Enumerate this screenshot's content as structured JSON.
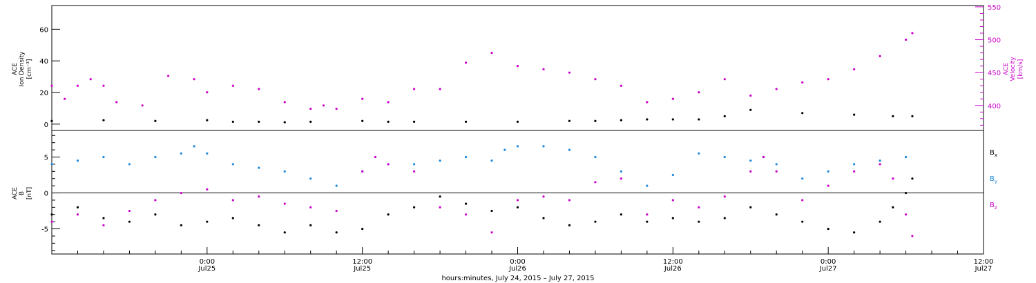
{
  "chart_data": [
    {
      "type": "scatter",
      "panel": "top",
      "ylabel_left": [
        "ACE",
        "Ion Density",
        "[cm⁻³]"
      ],
      "ylabel_right": [
        "ACE",
        "Velocity",
        "[km/s]"
      ],
      "left_axis": {
        "ylim": [
          -4,
          75
        ],
        "ticks": [
          0,
          20,
          40,
          60
        ]
      },
      "right_axis": {
        "ylim": [
          362,
          552
        ],
        "ticks": [
          400,
          450,
          500,
          550
        ],
        "color": "#cc00cc"
      },
      "xlim_hours": [
        0,
        72
      ],
      "series": [
        {
          "axis": "left",
          "color": "#000000",
          "points": [
            [
              0,
              2
            ],
            [
              4,
              2.5
            ],
            [
              8,
              2
            ],
            [
              12,
              2.5
            ],
            [
              14,
              1.5
            ],
            [
              16,
              1.5
            ],
            [
              18,
              1.2
            ],
            [
              20,
              1.5
            ],
            [
              24,
              2
            ],
            [
              26,
              1.5
            ],
            [
              28,
              1.5
            ],
            [
              32,
              1.5
            ],
            [
              36,
              1.5
            ],
            [
              40,
              2
            ],
            [
              42,
              2
            ],
            [
              44,
              2.5
            ],
            [
              46,
              3
            ],
            [
              48,
              3
            ],
            [
              50,
              3
            ],
            [
              52,
              5
            ],
            [
              54,
              9
            ],
            [
              58,
              7
            ],
            [
              62,
              6
            ],
            [
              65,
              5
            ],
            [
              66.5,
              5
            ]
          ]
        },
        {
          "axis": "right",
          "color": "#cc00cc",
          "points": [
            [
              0,
              430
            ],
            [
              1,
              410
            ],
            [
              2,
              430
            ],
            [
              3,
              440
            ],
            [
              4,
              430
            ],
            [
              5,
              405
            ],
            [
              7,
              400
            ],
            [
              9,
              445
            ],
            [
              11,
              440
            ],
            [
              12,
              420
            ],
            [
              14,
              430
            ],
            [
              16,
              425
            ],
            [
              18,
              405
            ],
            [
              20,
              395
            ],
            [
              21,
              400
            ],
            [
              22,
              395
            ],
            [
              24,
              410
            ],
            [
              26,
              405
            ],
            [
              28,
              425
            ],
            [
              30,
              425
            ],
            [
              32,
              465
            ],
            [
              34,
              480
            ],
            [
              36,
              460
            ],
            [
              38,
              455
            ],
            [
              40,
              450
            ],
            [
              42,
              440
            ],
            [
              44,
              430
            ],
            [
              46,
              405
            ],
            [
              48,
              410
            ],
            [
              50,
              420
            ],
            [
              52,
              440
            ],
            [
              54,
              415
            ],
            [
              56,
              425
            ],
            [
              58,
              435
            ],
            [
              60,
              440
            ],
            [
              62,
              455
            ],
            [
              64,
              475
            ],
            [
              66,
              500
            ],
            [
              66.5,
              510
            ]
          ]
        }
      ]
    },
    {
      "type": "scatter",
      "panel": "bottom",
      "ylabel_left": [
        "ACE",
        "B",
        "[nT]"
      ],
      "left_axis": {
        "ylim": [
          -8.5,
          8.7
        ],
        "ticks": [
          -5,
          0,
          5
        ]
      },
      "xlim_hours": [
        0,
        72
      ],
      "legend": [
        "Bx",
        "By",
        "Bz"
      ],
      "series": [
        {
          "name": "Bx",
          "color": "#000000",
          "points": [
            [
              0,
              -3
            ],
            [
              2,
              -2
            ],
            [
              4,
              -3.5
            ],
            [
              6,
              -4
            ],
            [
              8,
              -3
            ],
            [
              10,
              -4.5
            ],
            [
              12,
              -4
            ],
            [
              14,
              -3.5
            ],
            [
              16,
              -4.5
            ],
            [
              18,
              -5.5
            ],
            [
              20,
              -4.5
            ],
            [
              22,
              -5.5
            ],
            [
              24,
              -5
            ],
            [
              26,
              -3
            ],
            [
              28,
              -2
            ],
            [
              30,
              -0.5
            ],
            [
              32,
              -1.5
            ],
            [
              34,
              -2.5
            ],
            [
              36,
              -2
            ],
            [
              38,
              -3.5
            ],
            [
              40,
              -4.5
            ],
            [
              42,
              -4
            ],
            [
              44,
              -3
            ],
            [
              46,
              -4
            ],
            [
              48,
              -3.5
            ],
            [
              50,
              -4
            ],
            [
              52,
              -3.5
            ],
            [
              54,
              -2
            ],
            [
              56,
              -3
            ],
            [
              58,
              -4
            ],
            [
              60,
              -5
            ],
            [
              62,
              -5.5
            ],
            [
              64,
              -4
            ],
            [
              65,
              -2
            ],
            [
              66,
              0
            ],
            [
              66.5,
              2
            ]
          ]
        },
        {
          "name": "By",
          "color": "#1a88dd",
          "points": [
            [
              0,
              4
            ],
            [
              2,
              4.5
            ],
            [
              4,
              5
            ],
            [
              6,
              4
            ],
            [
              8,
              5
            ],
            [
              10,
              5.5
            ],
            [
              11,
              6.5
            ],
            [
              12,
              5.5
            ],
            [
              14,
              4
            ],
            [
              16,
              3.5
            ],
            [
              18,
              3
            ],
            [
              20,
              2
            ],
            [
              22,
              1
            ],
            [
              24,
              3
            ],
            [
              26,
              4
            ],
            [
              28,
              4
            ],
            [
              30,
              4.5
            ],
            [
              32,
              5
            ],
            [
              34,
              4.5
            ],
            [
              35,
              6
            ],
            [
              36,
              6.5
            ],
            [
              38,
              6.5
            ],
            [
              40,
              6
            ],
            [
              42,
              5
            ],
            [
              44,
              3
            ],
            [
              46,
              1
            ],
            [
              48,
              2.5
            ],
            [
              50,
              5.5
            ],
            [
              52,
              5
            ],
            [
              54,
              4.5
            ],
            [
              55,
              5
            ],
            [
              56,
              4
            ],
            [
              58,
              2
            ],
            [
              60,
              3
            ],
            [
              62,
              4
            ],
            [
              64,
              4.5
            ],
            [
              66,
              5
            ]
          ]
        },
        {
          "name": "Bz",
          "color": "#cc00cc",
          "points": [
            [
              0,
              -4
            ],
            [
              2,
              -3
            ],
            [
              4,
              -4.5
            ],
            [
              6,
              -2.5
            ],
            [
              8,
              -1
            ],
            [
              10,
              0
            ],
            [
              12,
              0.5
            ],
            [
              14,
              -1
            ],
            [
              16,
              -0.5
            ],
            [
              18,
              -1.5
            ],
            [
              20,
              -2
            ],
            [
              22,
              -2.5
            ],
            [
              24,
              3
            ],
            [
              25,
              5
            ],
            [
              26,
              4
            ],
            [
              28,
              3
            ],
            [
              30,
              -2
            ],
            [
              32,
              -3
            ],
            [
              34,
              -5.5
            ],
            [
              36,
              -1
            ],
            [
              38,
              -0.5
            ],
            [
              40,
              -1
            ],
            [
              42,
              1.5
            ],
            [
              44,
              2
            ],
            [
              46,
              -3
            ],
            [
              48,
              -1
            ],
            [
              50,
              -2
            ],
            [
              52,
              -0.5
            ],
            [
              54,
              3
            ],
            [
              55,
              5
            ],
            [
              56,
              3
            ],
            [
              58,
              -1
            ],
            [
              60,
              1
            ],
            [
              62,
              3
            ],
            [
              64,
              4
            ],
            [
              65,
              2
            ],
            [
              66,
              -3
            ],
            [
              66.5,
              -6
            ]
          ]
        }
      ]
    }
  ],
  "x_axis": {
    "ticks": [
      {
        "hour": 12,
        "time": "0:00",
        "date": "Jul25"
      },
      {
        "hour": 24,
        "time": "12:00",
        "date": "Jul25"
      },
      {
        "hour": 36,
        "time": "0:00",
        "date": "Jul26"
      },
      {
        "hour": 48,
        "time": "12:00",
        "date": "Jul26"
      },
      {
        "hour": 60,
        "time": "0:00",
        "date": "Jul27"
      },
      {
        "hour": 72,
        "time": "12:00",
        "date": "Jul27"
      }
    ],
    "label": "hours:minutes, July 24, 2015 – July 27, 2015"
  },
  "legend_labels": {
    "bx_main": "B",
    "bx_sub": "x",
    "by_main": "B",
    "by_sub": "y",
    "bz_main": "B",
    "bz_sub": "z"
  }
}
